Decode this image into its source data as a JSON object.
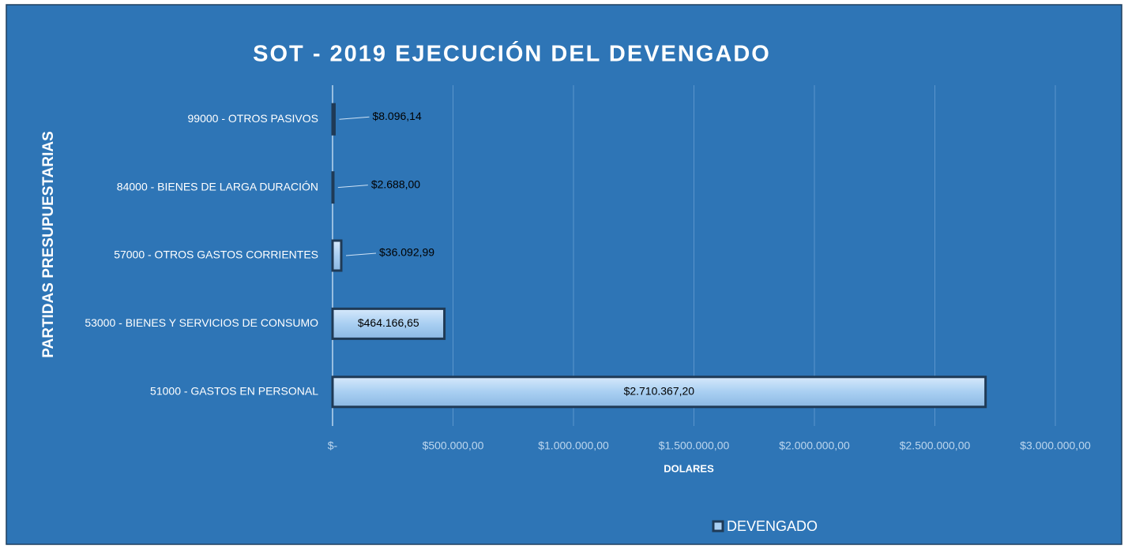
{
  "chart_data": {
    "type": "bar",
    "orientation": "horizontal",
    "title": "SOT - 2019 EJECUCIÓN DEL DEVENGADO",
    "xlabel": "DOLARES",
    "ylabel": "PARTIDAS PRESUPUESTARIAS",
    "categories": [
      "99000 - OTROS PASIVOS",
      "84000 - BIENES DE LARGA DURACIÓN",
      "57000 - OTROS GASTOS CORRIENTES",
      "53000 - BIENES Y SERVICIOS DE CONSUMO",
      "51000 - GASTOS EN PERSONAL"
    ],
    "series": [
      {
        "name": "DEVENGADO",
        "color": "#a9cff2",
        "values": [
          8096.14,
          2688,
          36092.99,
          464166.65,
          2710367.2
        ],
        "value_labels": [
          "$8.096,14",
          "$2.688,00",
          "$36.092,99",
          "$464.166,65",
          "$2.710.367,20"
        ]
      }
    ],
    "xlim": [
      0,
      3000000
    ],
    "xticks": [
      {
        "value": 0,
        "label": "$-"
      },
      {
        "value": 500000,
        "label": "$500.000,00"
      },
      {
        "value": 1000000,
        "label": "$1.000.000,00"
      },
      {
        "value": 1500000,
        "label": "$1.500.000,00"
      },
      {
        "value": 2000000,
        "label": "$2.000.000,00"
      },
      {
        "value": 2500000,
        "label": "$2.500.000,00"
      },
      {
        "value": 3000000,
        "label": "$3.000.000,00"
      }
    ],
    "grid": true,
    "legend": "bottom"
  }
}
